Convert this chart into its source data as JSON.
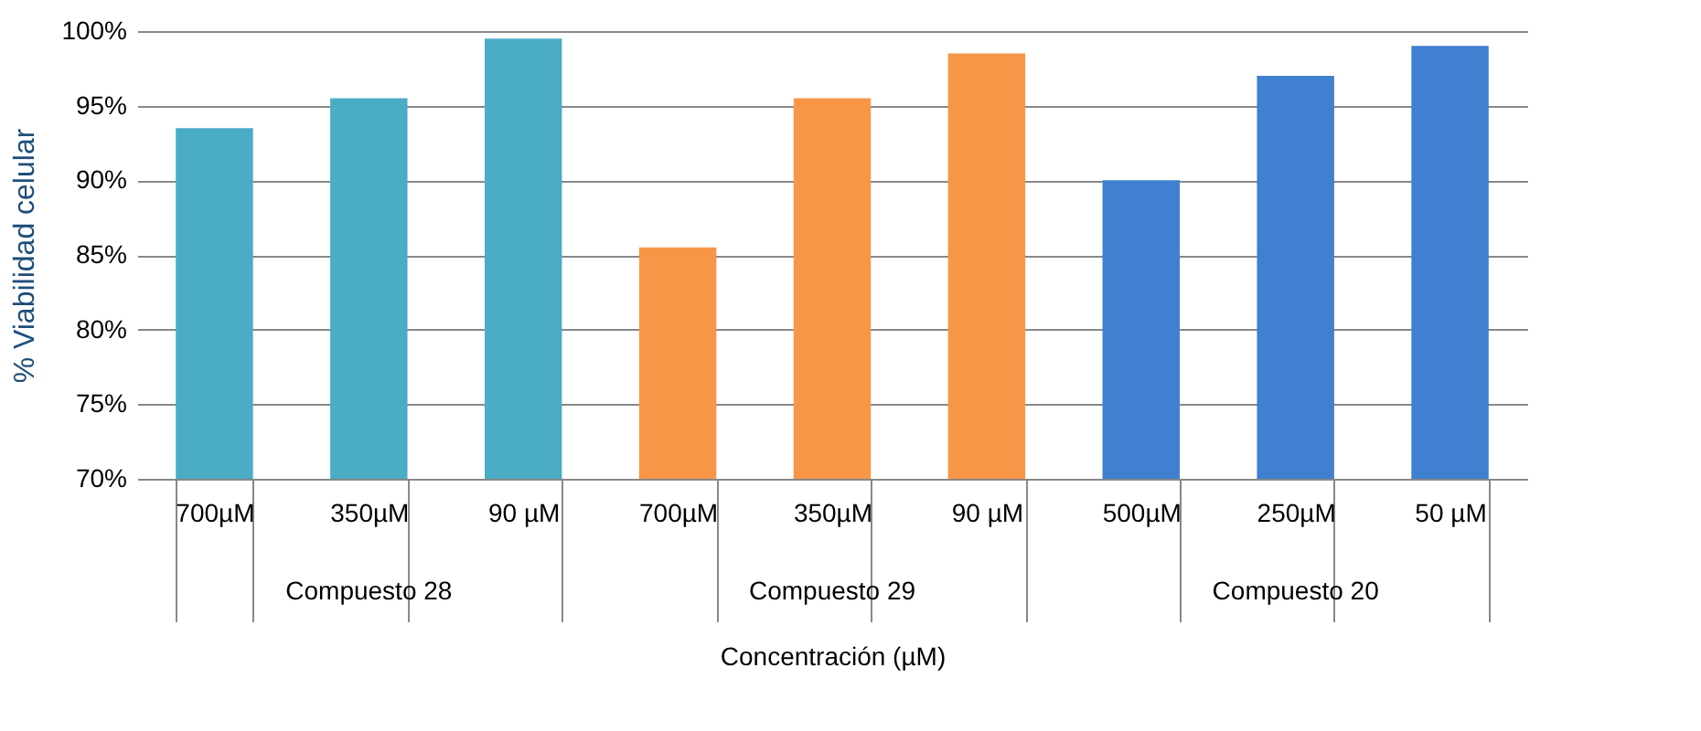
{
  "chart_data": {
    "type": "bar",
    "xlabel": "Concentración (µM)",
    "ylabel": "% Viabilidad celular",
    "categories": [
      "700µM",
      "350µM",
      "90 µM",
      "700µM",
      "350µM",
      "90 µM",
      "500µM",
      "250µM",
      "50 µM"
    ],
    "series": [
      {
        "name": "Compuesto  28",
        "color": "#4bacc6",
        "values": [
          93.5,
          95.5,
          99.5,
          null,
          null,
          null,
          null,
          null,
          null
        ]
      },
      {
        "name": "Compuesto  29",
        "color": "#f79646",
        "values": [
          null,
          null,
          null,
          85.5,
          95.5,
          98.5,
          null,
          null,
          null
        ]
      },
      {
        "name": "Compuesto  20",
        "color": "#3f80d0",
        "values": [
          null,
          null,
          null,
          null,
          null,
          null,
          90,
          97,
          99
        ]
      }
    ],
    "ylim": [
      70,
      100
    ],
    "yticks": [
      {
        "value": 70,
        "label": "70%"
      },
      {
        "value": 75,
        "label": "75%"
      },
      {
        "value": 80,
        "label": "80%"
      },
      {
        "value": 85,
        "label": "85%"
      },
      {
        "value": 90,
        "label": "90%"
      },
      {
        "value": 95,
        "label": "95%"
      },
      {
        "value": 100,
        "label": "100%"
      }
    ],
    "grid": "y",
    "legend": false
  }
}
